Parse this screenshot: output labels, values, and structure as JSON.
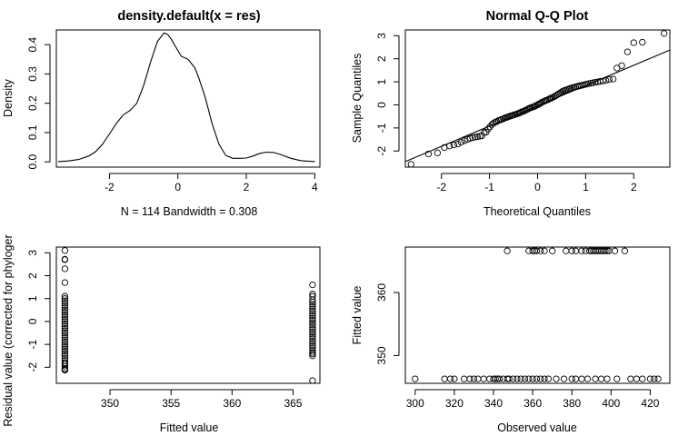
{
  "chart_data": [
    {
      "id": "density",
      "type": "line",
      "title": "density.default(x = res)",
      "xlabel": "N = 114   Bandwidth = 0.308",
      "ylabel": "Density",
      "xlim": [
        -3.55,
        4.15
      ],
      "ylim": [
        -0.018,
        0.45
      ],
      "xticks": [
        -2,
        0,
        2,
        4
      ],
      "yticks": [
        0.0,
        0.1,
        0.2,
        0.3,
        0.4
      ],
      "xtick_labels": [
        "-2",
        "0",
        "2",
        "4"
      ],
      "ytick_labels": [
        "0.0",
        "0.1",
        "0.2",
        "0.3",
        "0.4"
      ],
      "series": [
        {
          "x": [
            -3.5,
            -3.2,
            -2.9,
            -2.6,
            -2.4,
            -2.2,
            -2.0,
            -1.8,
            -1.6,
            -1.4,
            -1.2,
            -1.0,
            -0.8,
            -0.6,
            -0.4,
            -0.3,
            -0.2,
            0.0,
            0.1,
            0.3,
            0.5,
            0.6,
            0.8,
            1.0,
            1.2,
            1.4,
            1.6,
            1.8,
            2.0,
            2.2,
            2.4,
            2.6,
            2.8,
            3.0,
            3.3,
            3.6,
            4.0
          ],
          "y": [
            0.001,
            0.003,
            0.008,
            0.02,
            0.035,
            0.06,
            0.095,
            0.13,
            0.16,
            0.175,
            0.2,
            0.26,
            0.34,
            0.41,
            0.44,
            0.435,
            0.42,
            0.38,
            0.36,
            0.35,
            0.32,
            0.29,
            0.22,
            0.13,
            0.06,
            0.022,
            0.012,
            0.012,
            0.013,
            0.02,
            0.029,
            0.033,
            0.032,
            0.025,
            0.012,
            0.004,
            0.001
          ]
        }
      ]
    },
    {
      "id": "qq",
      "type": "scatter",
      "title": "Normal Q-Q Plot",
      "xlabel": "Theoretical Quantiles",
      "ylabel": "Sample Quantiles",
      "xlim": [
        -2.75,
        2.75
      ],
      "ylim": [
        -2.7,
        3.25
      ],
      "xticks": [
        -2,
        -1,
        0,
        1,
        2
      ],
      "yticks": [
        -2,
        -1,
        0,
        1,
        2,
        3
      ],
      "xtick_labels": [
        "-2",
        "-1",
        "0",
        "1",
        "2"
      ],
      "ytick_labels": [
        "-2",
        "-1",
        "0",
        "1",
        "2",
        "3"
      ],
      "reference_line": {
        "intercept": -0.04,
        "slope": 0.88
      },
      "series": [
        {
          "x": [
            -2.63,
            -2.27,
            -2.08,
            -1.94,
            -1.83,
            -1.74,
            -1.66,
            -1.59,
            -1.52,
            -1.46,
            -1.4,
            -1.35,
            -1.3,
            -1.25,
            -1.2,
            -1.16,
            -1.11,
            -1.07,
            -1.03,
            -0.99,
            -0.95,
            -0.92,
            -0.88,
            -0.85,
            -0.81,
            -0.78,
            -0.75,
            -0.71,
            -0.68,
            -0.65,
            -0.62,
            -0.59,
            -0.56,
            -0.53,
            -0.5,
            -0.47,
            -0.44,
            -0.41,
            -0.38,
            -0.36,
            -0.33,
            -0.3,
            -0.27,
            -0.25,
            -0.22,
            -0.19,
            -0.16,
            -0.14,
            -0.11,
            -0.08,
            -0.06,
            -0.03,
            0.0,
            0.02,
            0.05,
            0.07,
            0.1,
            0.13,
            0.16,
            0.18,
            0.21,
            0.24,
            0.26,
            0.29,
            0.32,
            0.35,
            0.38,
            0.41,
            0.44,
            0.47,
            0.5,
            0.53,
            0.56,
            0.59,
            0.63,
            0.66,
            0.69,
            0.72,
            0.76,
            0.79,
            0.83,
            0.86,
            0.9,
            0.94,
            0.98,
            1.02,
            1.06,
            1.11,
            1.15,
            1.2,
            1.25,
            1.3,
            1.36,
            1.42,
            1.49,
            1.57,
            1.65,
            1.75,
            1.87,
            2.0,
            2.18,
            2.63
          ],
          "y": [
            -2.58,
            -2.13,
            -2.08,
            -1.85,
            -1.78,
            -1.74,
            -1.7,
            -1.62,
            -1.55,
            -1.5,
            -1.45,
            -1.42,
            -1.4,
            -1.38,
            -1.36,
            -1.34,
            -1.2,
            -1.18,
            -1.05,
            -0.95,
            -0.85,
            -0.8,
            -0.75,
            -0.72,
            -0.68,
            -0.65,
            -0.63,
            -0.6,
            -0.57,
            -0.55,
            -0.53,
            -0.5,
            -0.48,
            -0.46,
            -0.44,
            -0.42,
            -0.4,
            -0.38,
            -0.35,
            -0.33,
            -0.3,
            -0.28,
            -0.26,
            -0.23,
            -0.2,
            -0.17,
            -0.14,
            -0.12,
            -0.1,
            -0.08,
            -0.06,
            -0.03,
            0.0,
            0.03,
            0.06,
            0.09,
            0.12,
            0.15,
            0.18,
            0.2,
            0.22,
            0.25,
            0.28,
            0.3,
            0.33,
            0.36,
            0.4,
            0.44,
            0.48,
            0.52,
            0.56,
            0.6,
            0.62,
            0.65,
            0.67,
            0.7,
            0.72,
            0.74,
            0.76,
            0.78,
            0.8,
            0.82,
            0.84,
            0.86,
            0.88,
            0.9,
            0.92,
            0.94,
            0.96,
            0.98,
            1.0,
            1.02,
            1.04,
            1.06,
            1.1,
            1.12,
            1.6,
            1.7,
            2.3,
            2.7,
            2.72,
            3.1
          ]
        }
      ]
    },
    {
      "id": "resid-vs-fitted",
      "type": "scatter",
      "title": "",
      "xlabel": "Fitted value",
      "ylabel": "Residual value (corrected for phyloger",
      "xlim": [
        345.6,
        367.2
      ],
      "ylim": [
        -2.7,
        3.25
      ],
      "xticks": [
        350,
        355,
        360,
        365
      ],
      "yticks": [
        -2,
        -1,
        0,
        1,
        2,
        3
      ],
      "xtick_labels": [
        "350",
        "355",
        "360",
        "365"
      ],
      "ytick_labels": [
        "-2",
        "-1",
        "0",
        "1",
        "2",
        "3"
      ],
      "series": [
        {
          "x": [
            346.3,
            346.3,
            346.3,
            346.3,
            346.3,
            346.3,
            346.3,
            346.3,
            346.3,
            346.3,
            346.3,
            346.3,
            346.3,
            346.3,
            346.3,
            346.3,
            346.3,
            346.3,
            346.3,
            346.3,
            346.3,
            346.3,
            346.3,
            346.3,
            346.3,
            346.3,
            346.3,
            346.3,
            346.3,
            346.3,
            346.3,
            346.3,
            346.3,
            346.3,
            346.3,
            346.3,
            346.3,
            346.3,
            346.3,
            346.3,
            366.6,
            366.6,
            366.6,
            366.6,
            366.6,
            366.6,
            366.6,
            366.6,
            366.6,
            366.6,
            366.6,
            366.6,
            366.6,
            366.6,
            366.6,
            366.6,
            366.6,
            366.6,
            366.6,
            366.6,
            366.6,
            366.6,
            366.6,
            366.6,
            366.6,
            366.6,
            366.6,
            366.6,
            366.6,
            366.6
          ],
          "y": [
            3.1,
            2.72,
            2.7,
            2.3,
            1.7,
            1.1,
            1.0,
            0.9,
            0.8,
            0.7,
            0.6,
            0.5,
            0.4,
            0.3,
            0.2,
            0.1,
            0.0,
            -0.1,
            -0.2,
            -0.3,
            -0.4,
            -0.5,
            -0.6,
            -0.7,
            -0.8,
            -0.9,
            -1.0,
            -1.1,
            -1.2,
            -1.3,
            -1.4,
            -1.5,
            -1.6,
            -1.7,
            -1.8,
            -1.85,
            -1.95,
            -2.05,
            -2.1,
            -2.13,
            1.6,
            1.2,
            1.1,
            0.95,
            0.85,
            0.75,
            0.65,
            0.55,
            0.45,
            0.35,
            0.25,
            0.15,
            0.05,
            -0.05,
            -0.15,
            -0.25,
            -0.35,
            -0.45,
            -0.55,
            -0.65,
            -0.75,
            -0.85,
            -0.95,
            -1.05,
            -1.15,
            -1.25,
            -1.35,
            -1.42,
            -1.5,
            -2.58
          ]
        }
      ]
    },
    {
      "id": "fitted-vs-observed",
      "type": "scatter",
      "title": "",
      "xlabel": "Observed value",
      "ylabel": "Fitted value",
      "xlim": [
        295,
        430
      ],
      "ylim": [
        345.6,
        367.2
      ],
      "xticks": [
        300,
        320,
        340,
        360,
        380,
        400,
        420
      ],
      "yticks": [
        350,
        360
      ],
      "xtick_labels": [
        "300",
        "320",
        "340",
        "360",
        "380",
        "400",
        "420"
      ],
      "ytick_labels": [
        "350",
        "360"
      ],
      "series": [
        {
          "x": [
            300,
            315,
            318,
            320,
            325,
            328,
            330,
            332,
            335,
            338,
            340,
            341,
            342,
            343,
            345,
            347,
            348,
            350,
            352,
            354,
            356,
            358,
            360,
            362,
            364,
            366,
            368,
            372,
            376,
            380,
            382,
            385,
            388,
            392,
            395,
            398,
            403,
            410,
            413,
            416,
            420,
            422,
            424,
            347,
            358,
            360,
            361,
            362,
            364,
            366,
            370,
            377,
            380,
            382,
            385,
            387,
            389,
            390,
            391,
            392,
            393,
            394,
            395,
            396,
            397,
            398,
            399,
            402,
            407
          ],
          "y": [
            346.3,
            346.3,
            346.3,
            346.3,
            346.3,
            346.3,
            346.3,
            346.3,
            346.3,
            346.3,
            346.3,
            346.3,
            346.3,
            346.3,
            346.3,
            346.3,
            346.3,
            346.3,
            346.3,
            346.3,
            346.3,
            346.3,
            346.3,
            346.3,
            346.3,
            346.3,
            346.3,
            346.3,
            346.3,
            346.3,
            346.3,
            346.3,
            346.3,
            346.3,
            346.3,
            346.3,
            346.3,
            346.3,
            346.3,
            346.3,
            346.3,
            346.3,
            346.3,
            366.6,
            366.6,
            366.6,
            366.6,
            366.6,
            366.6,
            366.6,
            366.6,
            366.6,
            366.6,
            366.6,
            366.6,
            366.6,
            366.6,
            366.6,
            366.6,
            366.6,
            366.6,
            366.6,
            366.6,
            366.6,
            366.6,
            366.6,
            366.6,
            366.6,
            366.6
          ]
        }
      ]
    }
  ]
}
